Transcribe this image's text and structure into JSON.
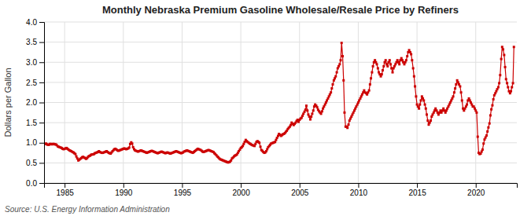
{
  "chart_data": {
    "type": "line",
    "title": "Monthly Nebraska Premium Gasoline Wholesale/Resale Price by Refiners",
    "y_label": "Dollars per Gallon",
    "annotation": "Source: U.S. Energy Information Administration",
    "color": "#cc0000",
    "marker": "square",
    "grid": true,
    "xlim": [
      1983.25,
      2023.5
    ],
    "ylim": [
      0.0,
      4.0
    ],
    "xticks": [
      1985,
      1990,
      1995,
      2000,
      2005,
      2010,
      2015,
      2020
    ],
    "yticks": [
      {
        "value": 0.0,
        "label": "0.0"
      },
      {
        "value": 0.5,
        "label": "0.5"
      },
      {
        "value": 1.0,
        "label": "1.0"
      },
      {
        "value": 1.5,
        "label": "1.5"
      },
      {
        "value": 2.0,
        "label": "2.0"
      },
      {
        "value": 2.5,
        "label": "2.5"
      },
      {
        "value": 3.0,
        "label": "3.0"
      },
      {
        "value": 3.5,
        "label": "3.5"
      },
      {
        "value": 4.0,
        "label": "4.0"
      }
    ],
    "x": [
      1983.33,
      1983.42,
      1983.5,
      1983.58,
      1983.67,
      1983.75,
      1983.83,
      1983.92,
      1984.0,
      1984.08,
      1984.17,
      1984.25,
      1984.33,
      1984.42,
      1984.5,
      1984.58,
      1984.67,
      1984.75,
      1984.83,
      1984.92,
      1985.0,
      1985.08,
      1985.17,
      1985.25,
      1985.33,
      1985.42,
      1985.5,
      1985.58,
      1985.67,
      1985.75,
      1985.83,
      1985.92,
      1986.0,
      1986.08,
      1986.17,
      1986.25,
      1986.33,
      1986.42,
      1986.5,
      1986.58,
      1986.67,
      1986.75,
      1986.83,
      1986.92,
      1987.0,
      1987.08,
      1987.17,
      1987.25,
      1987.33,
      1987.42,
      1987.5,
      1987.58,
      1987.67,
      1987.75,
      1987.83,
      1987.92,
      1988.0,
      1988.08,
      1988.17,
      1988.25,
      1988.33,
      1988.42,
      1988.5,
      1988.58,
      1988.67,
      1988.75,
      1988.83,
      1988.92,
      1989.0,
      1989.08,
      1989.17,
      1989.25,
      1989.33,
      1989.42,
      1989.5,
      1989.58,
      1989.67,
      1989.75,
      1989.83,
      1989.92,
      1990.0,
      1990.08,
      1990.17,
      1990.25,
      1990.33,
      1990.42,
      1990.5,
      1990.58,
      1990.67,
      1990.75,
      1990.83,
      1990.92,
      1991.0,
      1991.08,
      1991.17,
      1991.25,
      1991.33,
      1991.42,
      1991.5,
      1991.58,
      1991.67,
      1991.75,
      1991.83,
      1991.92,
      1992.0,
      1992.08,
      1992.17,
      1992.25,
      1992.33,
      1992.42,
      1992.5,
      1992.58,
      1992.67,
      1992.75,
      1992.83,
      1992.92,
      1993.0,
      1993.08,
      1993.17,
      1993.25,
      1993.33,
      1993.42,
      1993.5,
      1993.58,
      1993.67,
      1993.75,
      1993.83,
      1993.92,
      1994.0,
      1994.08,
      1994.17,
      1994.25,
      1994.33,
      1994.42,
      1994.5,
      1994.58,
      1994.67,
      1994.75,
      1994.83,
      1994.92,
      1995.0,
      1995.08,
      1995.17,
      1995.25,
      1995.33,
      1995.42,
      1995.5,
      1995.58,
      1995.67,
      1995.75,
      1995.83,
      1995.92,
      1996.0,
      1996.08,
      1996.17,
      1996.25,
      1996.33,
      1996.42,
      1996.5,
      1996.58,
      1996.67,
      1996.75,
      1996.83,
      1996.92,
      1997.0,
      1997.08,
      1997.17,
      1997.25,
      1997.33,
      1997.42,
      1997.5,
      1997.58,
      1997.67,
      1997.75,
      1997.83,
      1997.92,
      1998.0,
      1998.08,
      1998.17,
      1998.25,
      1998.33,
      1998.42,
      1998.5,
      1998.58,
      1998.67,
      1998.75,
      1998.83,
      1998.92,
      1999.0,
      1999.08,
      1999.17,
      1999.25,
      1999.33,
      1999.42,
      1999.5,
      1999.58,
      1999.67,
      1999.75,
      1999.83,
      1999.92,
      2000.0,
      2000.08,
      2000.17,
      2000.25,
      2000.33,
      2000.42,
      2000.5,
      2000.58,
      2000.67,
      2000.75,
      2000.83,
      2000.92,
      2001.0,
      2001.08,
      2001.17,
      2001.25,
      2001.33,
      2001.42,
      2001.5,
      2001.58,
      2001.67,
      2001.75,
      2001.83,
      2001.92,
      2002.0,
      2002.08,
      2002.17,
      2002.25,
      2002.33,
      2002.42,
      2002.5,
      2002.58,
      2002.67,
      2002.75,
      2002.83,
      2002.92,
      2003.0,
      2003.08,
      2003.17,
      2003.25,
      2003.33,
      2003.42,
      2003.5,
      2003.58,
      2003.67,
      2003.75,
      2003.83,
      2003.92,
      2004.0,
      2004.08,
      2004.17,
      2004.25,
      2004.33,
      2004.42,
      2004.5,
      2004.58,
      2004.67,
      2004.75,
      2004.83,
      2004.92,
      2005.0,
      2005.08,
      2005.17,
      2005.25,
      2005.33,
      2005.42,
      2005.5,
      2005.58,
      2005.67,
      2005.75,
      2005.83,
      2005.92,
      2006.0,
      2006.08,
      2006.17,
      2006.25,
      2006.33,
      2006.42,
      2006.5,
      2006.58,
      2006.67,
      2006.75,
      2006.83,
      2006.92,
      2007.0,
      2007.08,
      2007.17,
      2007.25,
      2007.33,
      2007.42,
      2007.5,
      2007.58,
      2007.67,
      2007.75,
      2007.83,
      2007.92,
      2008.0,
      2008.08,
      2008.17,
      2008.25,
      2008.33,
      2008.42,
      2008.5,
      2008.58,
      2008.67,
      2008.75,
      2008.83,
      2008.92,
      2009.0,
      2009.08,
      2009.17,
      2009.25,
      2009.33,
      2009.42,
      2009.5,
      2009.58,
      2009.67,
      2009.75,
      2009.83,
      2009.92,
      2010.0,
      2010.08,
      2010.17,
      2010.25,
      2010.33,
      2010.42,
      2010.5,
      2010.58,
      2010.67,
      2010.75,
      2010.83,
      2010.92,
      2011.0,
      2011.08,
      2011.17,
      2011.25,
      2011.33,
      2011.42,
      2011.5,
      2011.58,
      2011.67,
      2011.75,
      2011.83,
      2011.92,
      2012.0,
      2012.08,
      2012.17,
      2012.25,
      2012.33,
      2012.42,
      2012.5,
      2012.58,
      2012.67,
      2012.75,
      2012.83,
      2012.92,
      2013.0,
      2013.08,
      2013.17,
      2013.25,
      2013.33,
      2013.42,
      2013.5,
      2013.58,
      2013.67,
      2013.75,
      2013.83,
      2013.92,
      2014.0,
      2014.08,
      2014.17,
      2014.25,
      2014.33,
      2014.42,
      2014.5,
      2014.58,
      2014.67,
      2014.75,
      2014.83,
      2014.92,
      2015.0,
      2015.08,
      2015.17,
      2015.25,
      2015.33,
      2015.42,
      2015.5,
      2015.58,
      2015.67,
      2015.75,
      2015.83,
      2015.92,
      2016.0,
      2016.08,
      2016.17,
      2016.25,
      2016.33,
      2016.42,
      2016.5,
      2016.58,
      2016.67,
      2016.75,
      2016.83,
      2016.92,
      2017.0,
      2017.08,
      2017.17,
      2017.25,
      2017.33,
      2017.42,
      2017.5,
      2017.58,
      2017.67,
      2017.75,
      2017.83,
      2017.92,
      2018.0,
      2018.08,
      2018.17,
      2018.25,
      2018.33,
      2018.42,
      2018.5,
      2018.58,
      2018.67,
      2018.75,
      2018.83,
      2018.92,
      2019.0,
      2019.08,
      2019.17,
      2019.25,
      2019.33,
      2019.42,
      2019.5,
      2019.58,
      2019.67,
      2019.75,
      2019.83,
      2019.92,
      2020.0,
      2020.08,
      2020.17,
      2020.25,
      2020.33,
      2020.42,
      2020.5,
      2020.58,
      2020.67,
      2020.75,
      2020.83,
      2020.92,
      2021.0,
      2021.08,
      2021.17,
      2021.25,
      2021.33,
      2021.42,
      2021.5,
      2021.58,
      2021.67,
      2021.75,
      2021.83,
      2021.92,
      2022.0,
      2022.08,
      2022.17,
      2022.25,
      2022.33,
      2022.42,
      2022.5,
      2022.58,
      2022.67,
      2022.75,
      2022.83,
      2022.92,
      2023.0,
      2023.08,
      2023.17,
      2023.25
    ],
    "values": [
      0.97,
      0.98,
      0.96,
      0.95,
      0.95,
      0.97,
      0.97,
      0.96,
      0.97,
      0.97,
      0.96,
      0.96,
      0.94,
      0.91,
      0.9,
      0.89,
      0.88,
      0.87,
      0.85,
      0.84,
      0.85,
      0.86,
      0.87,
      0.85,
      0.83,
      0.81,
      0.8,
      0.79,
      0.77,
      0.76,
      0.74,
      0.72,
      0.66,
      0.61,
      0.56,
      0.58,
      0.6,
      0.62,
      0.64,
      0.65,
      0.63,
      0.62,
      0.6,
      0.62,
      0.65,
      0.67,
      0.68,
      0.7,
      0.71,
      0.71,
      0.72,
      0.74,
      0.75,
      0.76,
      0.77,
      0.79,
      0.77,
      0.76,
      0.75,
      0.75,
      0.76,
      0.77,
      0.78,
      0.79,
      0.77,
      0.75,
      0.74,
      0.73,
      0.76,
      0.79,
      0.82,
      0.84,
      0.85,
      0.83,
      0.81,
      0.8,
      0.81,
      0.82,
      0.83,
      0.84,
      0.85,
      0.86,
      0.85,
      0.84,
      0.85,
      0.86,
      0.88,
      0.97,
      1.01,
      0.98,
      0.89,
      0.84,
      0.81,
      0.8,
      0.79,
      0.78,
      0.79,
      0.8,
      0.81,
      0.8,
      0.79,
      0.78,
      0.77,
      0.76,
      0.75,
      0.76,
      0.77,
      0.78,
      0.79,
      0.8,
      0.79,
      0.78,
      0.77,
      0.76,
      0.75,
      0.74,
      0.75,
      0.76,
      0.77,
      0.78,
      0.77,
      0.76,
      0.75,
      0.74,
      0.75,
      0.76,
      0.75,
      0.74,
      0.73,
      0.74,
      0.75,
      0.76,
      0.77,
      0.78,
      0.79,
      0.78,
      0.77,
      0.76,
      0.75,
      0.74,
      0.75,
      0.76,
      0.78,
      0.79,
      0.8,
      0.81,
      0.8,
      0.79,
      0.78,
      0.77,
      0.76,
      0.75,
      0.77,
      0.79,
      0.81,
      0.83,
      0.85,
      0.84,
      0.83,
      0.82,
      0.8,
      0.78,
      0.77,
      0.78,
      0.79,
      0.8,
      0.81,
      0.82,
      0.81,
      0.8,
      0.79,
      0.78,
      0.77,
      0.74,
      0.72,
      0.69,
      0.66,
      0.64,
      0.61,
      0.59,
      0.58,
      0.57,
      0.56,
      0.55,
      0.54,
      0.53,
      0.52,
      0.51,
      0.52,
      0.53,
      0.56,
      0.61,
      0.63,
      0.66,
      0.68,
      0.69,
      0.71,
      0.75,
      0.79,
      0.83,
      0.87,
      0.89,
      0.92,
      0.97,
      1.02,
      1.07,
      1.04,
      1.02,
      1.0,
      0.98,
      0.97,
      0.95,
      0.94,
      0.93,
      0.92,
      0.97,
      1.02,
      1.04,
      1.02,
      1.0,
      0.9,
      0.82,
      0.8,
      0.77,
      0.75,
      0.76,
      0.79,
      0.84,
      0.89,
      0.92,
      0.95,
      0.98,
      0.99,
      1.0,
      1.01,
      1.02,
      1.07,
      1.12,
      1.17,
      1.22,
      1.2,
      1.17,
      1.19,
      1.21,
      1.22,
      1.24,
      1.27,
      1.3,
      1.34,
      1.37,
      1.4,
      1.44,
      1.5,
      1.47,
      1.44,
      1.47,
      1.5,
      1.54,
      1.57,
      1.52,
      1.57,
      1.6,
      1.62,
      1.67,
      1.72,
      1.77,
      1.82,
      1.92,
      1.8,
      1.7,
      1.65,
      1.58,
      1.65,
      1.72,
      1.8,
      1.9,
      1.95,
      1.92,
      1.88,
      1.82,
      1.78,
      1.75,
      1.72,
      1.78,
      1.85,
      1.9,
      1.95,
      2.0,
      2.05,
      2.1,
      2.15,
      2.2,
      2.25,
      2.35,
      2.45,
      2.55,
      2.6,
      2.65,
      2.75,
      2.85,
      2.9,
      2.95,
      3.05,
      3.48,
      3.15,
      2.55,
      1.75,
      1.4,
      1.4,
      1.37,
      1.45,
      1.55,
      1.6,
      1.65,
      1.7,
      1.75,
      1.8,
      1.85,
      1.9,
      1.95,
      2.0,
      2.05,
      2.1,
      2.15,
      2.2,
      2.25,
      2.3,
      2.25,
      2.23,
      2.2,
      2.25,
      2.3,
      2.45,
      2.6,
      2.75,
      2.9,
      3.0,
      3.05,
      3.0,
      2.95,
      2.85,
      2.75,
      2.7,
      2.65,
      2.7,
      2.8,
      2.9,
      3.0,
      3.05,
      2.95,
      2.9,
      3.0,
      3.05,
      2.95,
      2.85,
      2.75,
      2.85,
      2.9,
      2.95,
      3.0,
      3.05,
      3.0,
      2.95,
      3.05,
      3.1,
      3.05,
      3.0,
      2.95,
      3.0,
      3.05,
      3.15,
      3.25,
      3.3,
      3.25,
      3.2,
      3.05,
      2.85,
      2.65,
      2.4,
      2.15,
      1.95,
      1.9,
      1.85,
      1.95,
      2.05,
      2.15,
      2.1,
      2.05,
      1.95,
      1.85,
      1.7,
      1.55,
      1.45,
      1.5,
      1.55,
      1.65,
      1.7,
      1.75,
      1.8,
      1.85,
      1.8,
      1.75,
      1.7,
      1.75,
      1.8,
      1.75,
      1.8,
      1.85,
      1.8,
      1.75,
      1.8,
      1.85,
      1.9,
      1.95,
      2.0,
      2.05,
      2.1,
      2.15,
      2.25,
      2.35,
      2.45,
      2.55,
      2.5,
      2.45,
      2.4,
      2.25,
      2.05,
      1.85,
      1.8,
      1.85,
      1.9,
      1.95,
      2.05,
      2.1,
      2.05,
      2.0,
      1.95,
      1.9,
      1.9,
      1.85,
      1.8,
      1.75,
      1.15,
      0.75,
      0.72,
      0.73,
      0.78,
      0.83,
      0.98,
      1.08,
      1.13,
      1.18,
      1.28,
      1.38,
      1.48,
      1.68,
      1.83,
      1.93,
      2.08,
      2.18,
      2.23,
      2.28,
      2.33,
      2.38,
      2.48,
      2.68,
      3.08,
      3.38,
      3.32,
      3.18,
      2.88,
      2.58,
      2.48,
      2.38,
      2.28,
      2.23,
      2.28,
      2.38,
      2.48,
      3.38
    ]
  }
}
